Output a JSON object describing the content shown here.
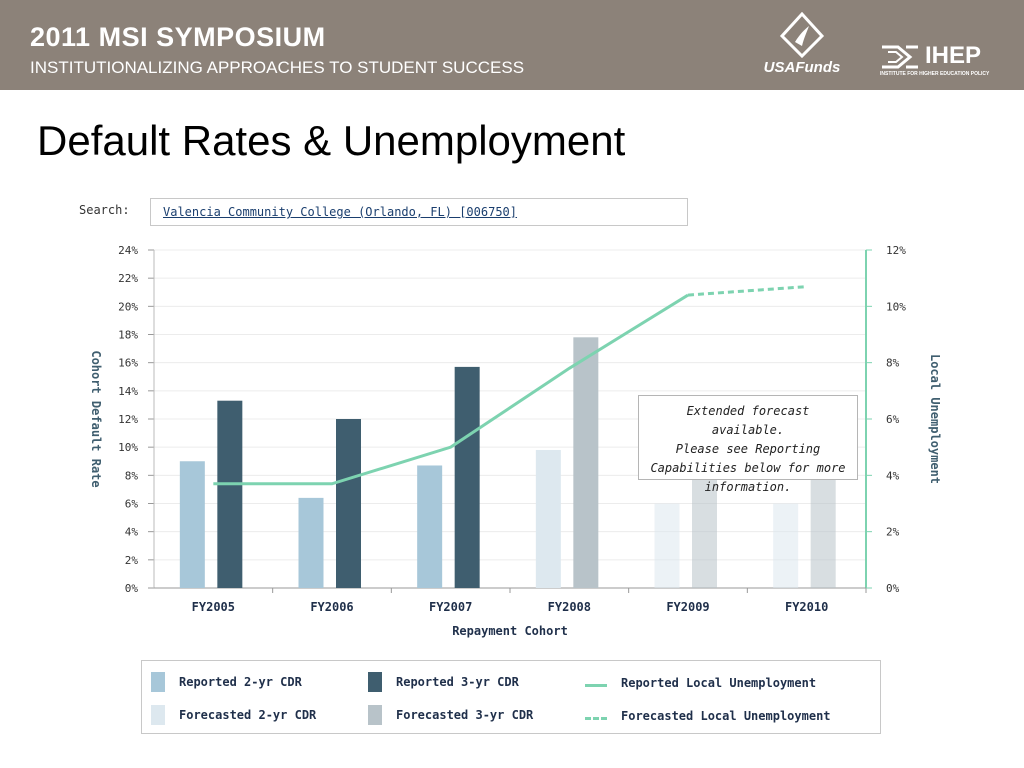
{
  "header": {
    "title": "2011 MSI SYMPOSIUM",
    "subtitle": "INSTITUTIONALIZING APPROACHES TO STUDENT SUCCESS",
    "logo_usafunds": "USAFunds",
    "logo_ihep": "IHEP",
    "logo_ihep_tagline": "INSTITUTE FOR HIGHER EDUCATION POLICY"
  },
  "slide": {
    "title": "Default Rates & Unemployment"
  },
  "search": {
    "label": "Search:",
    "value": "Valencia Community College (Orlando, FL) [006750]"
  },
  "callout": {
    "lines": [
      "Extended forecast available.",
      "Please see Reporting",
      "Capabilities below for more",
      "information."
    ]
  },
  "legend": {
    "reported_2yr": "Reported 2-yr CDR",
    "reported_3yr": "Reported 3-yr CDR",
    "reported_unemp": "Reported Local Unemployment",
    "forecast_2yr": "Forecasted 2-yr CDR",
    "forecast_3yr": "Forecasted 3-yr CDR",
    "forecast_unemp": "Forecasted Local Unemployment"
  },
  "colors": {
    "reported_2yr": "#a7c7d9",
    "reported_3yr": "#3f5e6f",
    "forecast_2yr": "#dde8ef",
    "forecast_3yr": "#b8c3c9",
    "unemployment": "#7dd3b0",
    "header_bg": "#8c8279"
  },
  "chart_data": {
    "type": "bar",
    "categories": [
      "FY2005",
      "FY2006",
      "FY2007",
      "FY2008",
      "FY2009",
      "FY2010"
    ],
    "xlabel": "Repayment Cohort",
    "ylabel": "Cohort Default Rate",
    "y2label": "Local Unemployment",
    "ylim": [
      0,
      24
    ],
    "y2lim": [
      0,
      12
    ],
    "yticks": [
      "0%",
      "2%",
      "4%",
      "6%",
      "8%",
      "10%",
      "12%",
      "14%",
      "16%",
      "18%",
      "20%",
      "22%",
      "24%"
    ],
    "y2ticks": [
      "0%",
      "2%",
      "4%",
      "6%",
      "8%",
      "10%",
      "12%"
    ],
    "series": [
      {
        "name": "Reported 2-yr CDR",
        "values": [
          9.0,
          6.4,
          8.7,
          null,
          null,
          null
        ]
      },
      {
        "name": "Reported 3-yr CDR",
        "values": [
          13.3,
          12.0,
          15.7,
          null,
          null,
          null
        ]
      },
      {
        "name": "Forecasted 2-yr CDR",
        "values": [
          null,
          null,
          null,
          9.8,
          6.0,
          6.0
        ]
      },
      {
        "name": "Forecasted 3-yr CDR",
        "values": [
          null,
          null,
          null,
          17.8,
          8.2,
          8.2
        ]
      },
      {
        "name": "Reported Local Unemployment",
        "axis": "right",
        "values": [
          3.7,
          3.7,
          5.0,
          7.8,
          10.4,
          null
        ]
      },
      {
        "name": "Forecasted Local Unemployment",
        "axis": "right",
        "values": [
          null,
          null,
          null,
          null,
          10.4,
          10.7
        ]
      }
    ],
    "grid": true,
    "legend": "bottom"
  }
}
